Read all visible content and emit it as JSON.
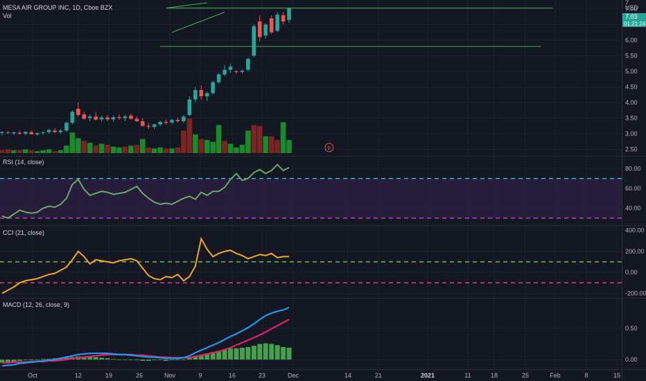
{
  "header": {
    "symbol_title": "MESA AIR GROUP INC, 1D, Cboe BZX",
    "vol_label": "Vol",
    "currency": "USD",
    "last_price": "7.03",
    "countdown": "01:21:24",
    "earnings_marker": "E"
  },
  "panels": {
    "rsi": {
      "title": "RSI (14, close)"
    },
    "cci": {
      "title": "CCI (21, close)"
    },
    "macd": {
      "title": "MACD (12, 26, close, 9)"
    }
  },
  "x_axis": {
    "labels": [
      "Oct",
      "12",
      "19",
      "26",
      "Nov",
      "9",
      "16",
      "23",
      "Dec",
      "14",
      "21",
      "2021",
      "11",
      "18",
      "25",
      "Feb",
      "8",
      "15"
    ]
  },
  "colors": {
    "background": "#131722",
    "up": "#26a69a",
    "down": "#ef5350",
    "vol_up": "#1b8a2b",
    "vol_down": "#7a2424",
    "trendline": "#4caf50",
    "rsi_line": "#6aa86a",
    "rsi_band": "#2a1e40",
    "rsi_upper": "#3fb0d9",
    "rsi_lower": "#b543c7",
    "cci_line": "#f5a623",
    "cci_upper": "#6dbf4f",
    "cci_lower": "#e0407a",
    "macd_line": "#2196f3",
    "signal_line": "#e91e63",
    "hist": "#4caf50",
    "price_label_bg": "#26a69a"
  },
  "chart_data": [
    {
      "type": "candlestick",
      "title": "MESA AIR GROUP INC, 1D, Cboe BZX",
      "ylabel": "USD",
      "ylim": [
        2.4,
        7.2
      ],
      "y_ticks": [
        "2.50",
        "3.00",
        "3.50",
        "4.00",
        "4.50",
        "5.00",
        "5.50",
        "6.00",
        "6.50",
        "7.00"
      ],
      "top_tick": "7",
      "ohlc": [
        [
          3.02,
          3.08,
          2.95,
          3.05
        ],
        [
          3.04,
          3.1,
          2.98,
          3.02
        ],
        [
          3.01,
          3.07,
          2.96,
          3.04
        ],
        [
          3.03,
          3.09,
          2.97,
          3.0
        ],
        [
          3.0,
          3.08,
          2.95,
          3.06
        ],
        [
          3.05,
          3.1,
          2.98,
          2.98
        ],
        [
          2.98,
          3.05,
          2.93,
          3.02
        ],
        [
          3.02,
          3.08,
          2.97,
          3.04
        ],
        [
          3.05,
          3.15,
          3.0,
          3.12
        ],
        [
          3.1,
          3.18,
          3.02,
          3.05
        ],
        [
          3.05,
          3.15,
          3.0,
          3.1
        ],
        [
          3.1,
          3.4,
          3.05,
          3.35
        ],
        [
          3.35,
          3.75,
          3.3,
          3.7
        ],
        [
          3.8,
          4.0,
          3.55,
          3.6
        ],
        [
          3.62,
          3.7,
          3.45,
          3.48
        ],
        [
          3.5,
          3.62,
          3.4,
          3.55
        ],
        [
          3.55,
          3.68,
          3.42,
          3.45
        ],
        [
          3.46,
          3.58,
          3.38,
          3.52
        ],
        [
          3.52,
          3.6,
          3.4,
          3.46
        ],
        [
          3.46,
          3.58,
          3.38,
          3.53
        ],
        [
          3.53,
          3.62,
          3.45,
          3.5
        ],
        [
          3.5,
          3.6,
          3.4,
          3.55
        ],
        [
          3.58,
          3.65,
          3.45,
          3.48
        ],
        [
          3.48,
          3.56,
          3.38,
          3.4
        ],
        [
          3.4,
          3.5,
          3.22,
          3.25
        ],
        [
          3.25,
          3.35,
          3.15,
          3.22
        ],
        [
          3.22,
          3.32,
          3.15,
          3.3
        ],
        [
          3.3,
          3.42,
          3.25,
          3.38
        ],
        [
          3.38,
          3.45,
          3.3,
          3.35
        ],
        [
          3.36,
          3.48,
          3.3,
          3.44
        ],
        [
          3.44,
          3.52,
          3.35,
          3.4
        ],
        [
          3.4,
          3.6,
          3.35,
          3.55
        ],
        [
          3.6,
          4.2,
          3.55,
          4.1
        ],
        [
          4.1,
          4.5,
          4.0,
          4.4
        ],
        [
          4.4,
          4.55,
          4.1,
          4.2
        ],
        [
          4.2,
          4.35,
          4.05,
          4.3
        ],
        [
          4.3,
          4.7,
          4.25,
          4.65
        ],
        [
          4.65,
          4.95,
          4.6,
          4.9
        ],
        [
          4.9,
          5.2,
          4.85,
          5.05
        ],
        [
          5.05,
          5.25,
          4.95,
          5.15
        ],
        [
          5.0,
          5.05,
          4.92,
          4.98
        ],
        [
          4.98,
          5.05,
          4.93,
          5.02
        ],
        [
          5.05,
          5.45,
          5.0,
          5.4
        ],
        [
          5.5,
          6.5,
          5.45,
          6.45
        ],
        [
          6.6,
          6.8,
          5.95,
          6.1
        ],
        [
          6.15,
          6.55,
          6.05,
          6.5
        ],
        [
          6.7,
          6.8,
          6.2,
          6.25
        ],
        [
          6.3,
          6.9,
          6.25,
          6.82
        ],
        [
          6.8,
          6.9,
          6.5,
          6.6
        ],
        [
          6.65,
          7.05,
          6.55,
          7.03
        ]
      ],
      "volume": [
        [
          3,
          "down"
        ],
        [
          4,
          "down"
        ],
        [
          3,
          "up"
        ],
        [
          3,
          "down"
        ],
        [
          4,
          "up"
        ],
        [
          3,
          "down"
        ],
        [
          2,
          "up"
        ],
        [
          3,
          "up"
        ],
        [
          4,
          "up"
        ],
        [
          2,
          "down"
        ],
        [
          3,
          "up"
        ],
        [
          8,
          "up"
        ],
        [
          22,
          "up"
        ],
        [
          16,
          "up"
        ],
        [
          13,
          "down"
        ],
        [
          11,
          "up"
        ],
        [
          8,
          "down"
        ],
        [
          10,
          "up"
        ],
        [
          9,
          "down"
        ],
        [
          7,
          "up"
        ],
        [
          6,
          "up"
        ],
        [
          7,
          "down"
        ],
        [
          8,
          "up"
        ],
        [
          9,
          "down"
        ],
        [
          15,
          "up"
        ],
        [
          6,
          "down"
        ],
        [
          5,
          "up"
        ],
        [
          6,
          "up"
        ],
        [
          5,
          "down"
        ],
        [
          5,
          "up"
        ],
        [
          6,
          "down"
        ],
        [
          24,
          "down"
        ],
        [
          37,
          "down"
        ],
        [
          20,
          "up"
        ],
        [
          15,
          "down"
        ],
        [
          14,
          "up"
        ],
        [
          12,
          "up"
        ],
        [
          30,
          "up"
        ],
        [
          13,
          "down"
        ],
        [
          10,
          "up"
        ],
        [
          6,
          "up"
        ],
        [
          9,
          "up"
        ],
        [
          24,
          "up"
        ],
        [
          30,
          "down"
        ],
        [
          29,
          "down"
        ],
        [
          18,
          "up"
        ],
        [
          18,
          "down"
        ],
        [
          14,
          "down"
        ],
        [
          33,
          "up"
        ],
        [
          14,
          "up"
        ]
      ],
      "lines": [
        {
          "name": "",
          "points": [
            [
              28,
              7.03
            ],
            [
              94,
              7.03
            ]
          ]
        },
        {
          "name": "",
          "points": [
            [
              28,
              7.03
            ],
            [
              35,
              7.2
            ]
          ]
        },
        {
          "name": "",
          "points": [
            [
              29,
              6.25
            ],
            [
              38,
              6.9
            ]
          ]
        },
        {
          "name": "",
          "points": [
            [
              27,
              5.8
            ],
            [
              92,
              5.8
            ]
          ]
        }
      ]
    },
    {
      "type": "line",
      "title": "RSI (14, close)",
      "ylim": [
        25,
        90
      ],
      "y_ticks": [
        "40.00",
        "60.00",
        "80.00"
      ],
      "levels": [
        70,
        30
      ],
      "values": [
        32,
        30,
        34,
        38,
        36,
        35,
        36,
        40,
        42,
        41,
        44,
        50,
        64,
        69,
        59,
        53,
        55,
        57,
        56,
        54,
        55,
        56,
        59,
        62,
        55,
        50,
        46,
        44,
        45,
        44,
        47,
        50,
        52,
        49,
        56,
        53,
        57,
        57,
        61,
        69,
        75,
        68,
        70,
        76,
        79,
        75,
        78,
        84,
        78,
        81
      ]
    },
    {
      "type": "line",
      "title": "CCI (21, close)",
      "ylim": [
        -230,
        430
      ],
      "y_ticks": [
        "-200.00",
        "0.00",
        "200.00",
        "400.00"
      ],
      "levels": [
        100,
        -100
      ],
      "values": [
        -200,
        -170,
        -140,
        -100,
        -80,
        -70,
        -60,
        -40,
        -20,
        -10,
        20,
        50,
        120,
        200,
        150,
        80,
        120,
        110,
        100,
        90,
        110,
        120,
        130,
        110,
        40,
        -30,
        -60,
        -70,
        -40,
        -50,
        -20,
        -80,
        -40,
        60,
        320,
        220,
        150,
        180,
        200,
        210,
        180,
        160,
        130,
        150,
        170,
        160,
        180,
        140,
        150,
        150
      ]
    },
    {
      "type": "line",
      "title": "MACD (12, 26, close, 9)",
      "ylim": [
        -0.12,
        0.95
      ],
      "y_ticks": [
        "0.00",
        "0.50"
      ],
      "series": [
        {
          "name": "",
          "values": [
            -0.1,
            -0.09,
            -0.08,
            -0.06,
            -0.05,
            -0.04,
            -0.03,
            -0.02,
            -0.01,
            0.0,
            0.02,
            0.04,
            0.06,
            0.08,
            0.09,
            0.1,
            0.1,
            0.1,
            0.1,
            0.09,
            0.08,
            0.08,
            0.07,
            0.06,
            0.05,
            0.04,
            0.04,
            0.03,
            0.02,
            0.02,
            0.02,
            0.03,
            0.06,
            0.11,
            0.15,
            0.19,
            0.23,
            0.27,
            0.32,
            0.37,
            0.41,
            0.46,
            0.51,
            0.57,
            0.64,
            0.7,
            0.74,
            0.77,
            0.79,
            0.83
          ]
        },
        {
          "name": "",
          "values": [
            -0.05,
            -0.05,
            -0.04,
            -0.04,
            -0.04,
            -0.03,
            -0.03,
            -0.03,
            -0.02,
            -0.02,
            -0.01,
            0.0,
            0.02,
            0.03,
            0.04,
            0.05,
            0.06,
            0.07,
            0.08,
            0.08,
            0.08,
            0.08,
            0.08,
            0.07,
            0.07,
            0.06,
            0.05,
            0.04,
            0.04,
            0.03,
            0.03,
            0.03,
            0.03,
            0.05,
            0.07,
            0.09,
            0.11,
            0.13,
            0.16,
            0.19,
            0.23,
            0.27,
            0.31,
            0.35,
            0.39,
            0.44,
            0.49,
            0.54,
            0.59,
            0.64
          ]
        },
        {
          "name": "",
          "values": [
            -0.05,
            -0.04,
            -0.04,
            -0.02,
            -0.01,
            -0.01,
            0.0,
            0.01,
            0.01,
            0.02,
            0.03,
            0.04,
            0.04,
            0.05,
            0.05,
            0.05,
            0.04,
            0.03,
            0.02,
            0.01,
            0.0,
            0.0,
            -0.01,
            -0.01,
            -0.02,
            -0.02,
            -0.01,
            -0.01,
            -0.02,
            -0.01,
            -0.01,
            0.0,
            0.03,
            0.06,
            0.08,
            0.1,
            0.12,
            0.14,
            0.16,
            0.18,
            0.18,
            0.19,
            0.2,
            0.22,
            0.25,
            0.26,
            0.25,
            0.23,
            0.2,
            0.19
          ]
        }
      ]
    }
  ]
}
